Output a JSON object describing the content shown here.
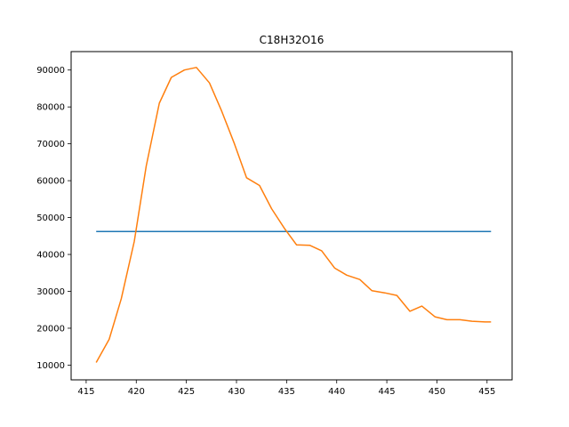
{
  "chart_data": {
    "type": "line",
    "title": "C18H32O16",
    "xlabel": "",
    "ylabel": "",
    "xlim": [
      413.5,
      457.5
    ],
    "ylim": [
      6000,
      95000
    ],
    "x_ticks": [
      415,
      420,
      425,
      430,
      435,
      440,
      445,
      450,
      455
    ],
    "y_ticks": [
      10000,
      20000,
      30000,
      40000,
      50000,
      60000,
      70000,
      80000,
      90000
    ],
    "y_tick_labels": [
      "10000",
      "20000",
      "30000",
      "40000",
      "50000",
      "60000",
      "70000",
      "80000",
      "90000"
    ],
    "grid": false,
    "series": [
      {
        "color": "#1f77b4",
        "x": [
          416.0,
          455.4
        ],
        "y": [
          46200,
          46200
        ]
      },
      {
        "color": "#ff7f0e",
        "x": [
          416.0,
          417.3,
          418.5,
          419.8,
          421.0,
          422.3,
          423.5,
          424.8,
          426.0,
          427.3,
          428.5,
          429.8,
          431.0,
          432.3,
          433.5,
          434.8,
          436.0,
          437.3,
          438.5,
          439.8,
          441.0,
          442.3,
          443.5,
          444.8,
          446.0,
          447.3,
          448.5,
          449.8,
          451.0,
          452.3,
          453.5,
          454.8,
          455.4
        ],
        "y": [
          10700,
          17000,
          28000,
          43500,
          64000,
          81000,
          88000,
          90000,
          90700,
          86500,
          79000,
          70000,
          60800,
          58700,
          52400,
          47000,
          42600,
          42500,
          41000,
          36300,
          34400,
          33200,
          30200,
          29600,
          28900,
          24600,
          26000,
          23100,
          22300,
          22300,
          21900,
          21700,
          21700
        ]
      }
    ]
  }
}
